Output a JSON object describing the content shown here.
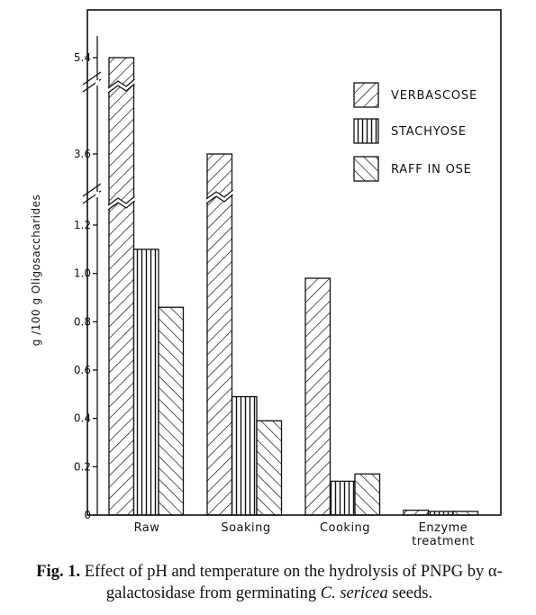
{
  "chart_data": {
    "type": "bar",
    "ylabel": "g /100 g Oligosaccharides",
    "y_axis_break": true,
    "upper_ticks": [
      "5.4",
      "3.6"
    ],
    "lower_ticks": [
      "0",
      "0.2",
      "0.4",
      "0.6",
      "0.8",
      "1.0",
      "1.2"
    ],
    "ylim": [
      0,
      5.4
    ],
    "categories": [
      "Raw",
      "Soaking",
      "Cooking",
      "Enzyme treatment"
    ],
    "category_labels": [
      [
        "Raw"
      ],
      [
        "Soaking"
      ],
      [
        "Cooking"
      ],
      [
        "Enzyme",
        "treatment"
      ]
    ],
    "series": [
      {
        "name": "VERBASCOSE",
        "pattern": "diagonal-right",
        "values": [
          5.4,
          3.6,
          0.98,
          0.02
        ]
      },
      {
        "name": "STACHYOSE",
        "pattern": "vertical",
        "values": [
          1.1,
          0.49,
          0.14,
          0.015
        ]
      },
      {
        "name": "RAFF IN OSE",
        "pattern": "diagonal-left",
        "values": [
          0.86,
          0.39,
          0.17,
          0.015
        ]
      }
    ],
    "grid": false,
    "legend_position": "top-right"
  },
  "caption": {
    "fig_label": "Fig. 1.",
    "text_1": " Effect of pH and temperature on the hydrolysis of PNPG by α-galactosidase from germinating ",
    "species": "C. sericea",
    "text_2": " seeds."
  }
}
